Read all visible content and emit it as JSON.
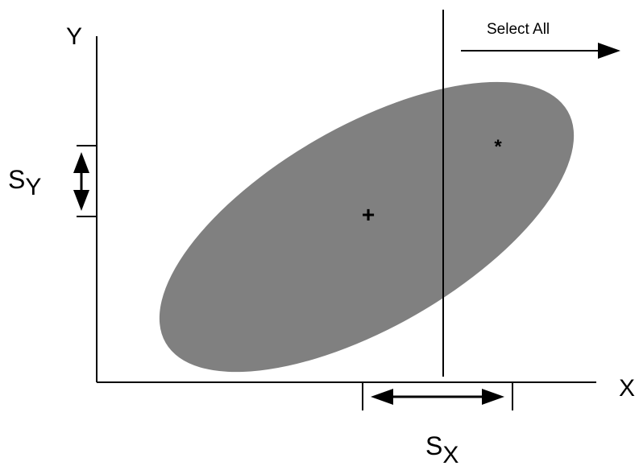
{
  "axes": {
    "x_label": "X",
    "y_label": "Y"
  },
  "annotations": {
    "select_all": "Select All",
    "sx_main": "S",
    "sx_sub": "X",
    "sy_main": "S",
    "sy_sub": "Y"
  },
  "markers": {
    "mean": "+",
    "point": "*"
  },
  "colors": {
    "ellipse_fill": "#808080",
    "line": "#000000",
    "background": "#ffffff"
  }
}
